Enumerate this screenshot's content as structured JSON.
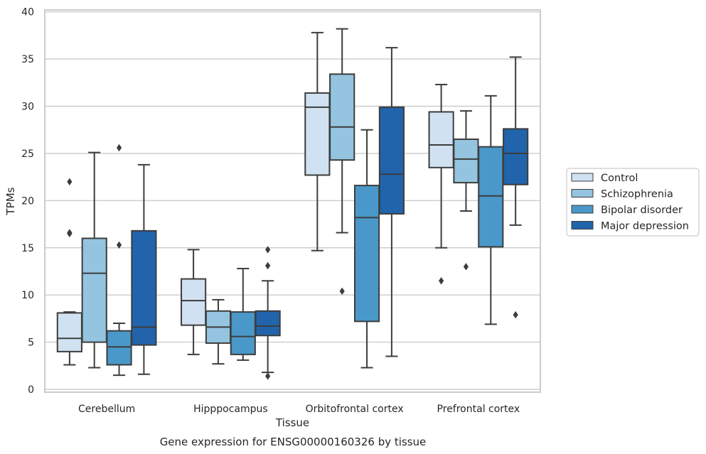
{
  "chart_data": {
    "type": "boxplot",
    "title": "",
    "xlabel": "Tissue",
    "ylabel": "TPMs",
    "caption": "Gene expression for ENSG00000160326 by tissue",
    "ylim": [
      -0.3,
      40.2
    ],
    "yticks": [
      0,
      5,
      10,
      15,
      20,
      25,
      30,
      35,
      40
    ],
    "grid": "horizontal",
    "legend_position": "right",
    "categories": [
      "Cerebellum",
      "Hipppocampus",
      "Orbitofrontal cortex",
      "Prefrontal cortex"
    ],
    "series": [
      {
        "name": "Control",
        "color": "#d0e1f2",
        "boxes": [
          {
            "whislo": 2.6,
            "q1": 4.0,
            "med": 5.4,
            "q3": 8.1,
            "whishi": 8.2,
            "fliers": [
              16.5,
              16.6,
              22.0
            ]
          },
          {
            "whislo": 3.7,
            "q1": 6.8,
            "med": 9.4,
            "q3": 11.7,
            "whishi": 14.8,
            "fliers": []
          },
          {
            "whislo": 14.7,
            "q1": 22.7,
            "med": 29.9,
            "q3": 31.4,
            "whishi": 37.8,
            "fliers": []
          },
          {
            "whislo": 15.0,
            "q1": 23.5,
            "med": 25.9,
            "q3": 29.4,
            "whishi": 32.3,
            "fliers": [
              11.5
            ]
          }
        ]
      },
      {
        "name": "Schizophrenia",
        "color": "#94c4df",
        "boxes": [
          {
            "whislo": 2.3,
            "q1": 5.0,
            "med": 12.3,
            "q3": 16.0,
            "whishi": 25.1,
            "fliers": []
          },
          {
            "whislo": 2.7,
            "q1": 4.9,
            "med": 6.6,
            "q3": 8.3,
            "whishi": 9.5,
            "fliers": []
          },
          {
            "whislo": 16.6,
            "q1": 24.3,
            "med": 27.8,
            "q3": 33.4,
            "whishi": 38.2,
            "fliers": [
              10.4
            ]
          },
          {
            "whislo": 18.9,
            "q1": 21.9,
            "med": 24.4,
            "q3": 26.5,
            "whishi": 29.5,
            "fliers": [
              13.0
            ]
          }
        ]
      },
      {
        "name": "Bipolar disorder",
        "color": "#4a98c9",
        "boxes": [
          {
            "whislo": 1.5,
            "q1": 2.6,
            "med": 4.5,
            "q3": 6.2,
            "whishi": 7.0,
            "fliers": [
              15.3,
              25.6
            ]
          },
          {
            "whislo": 3.1,
            "q1": 3.7,
            "med": 5.6,
            "q3": 8.2,
            "whishi": 12.8,
            "fliers": []
          },
          {
            "whislo": 2.3,
            "q1": 7.2,
            "med": 18.2,
            "q3": 21.6,
            "whishi": 27.5,
            "fliers": []
          },
          {
            "whislo": 6.9,
            "q1": 15.1,
            "med": 20.5,
            "q3": 25.7,
            "whishi": 31.1,
            "fliers": []
          }
        ]
      },
      {
        "name": "Major depression",
        "color": "#2164ab",
        "boxes": [
          {
            "whislo": 1.6,
            "q1": 4.7,
            "med": 6.6,
            "q3": 16.8,
            "whishi": 23.8,
            "fliers": []
          },
          {
            "whislo": 1.8,
            "q1": 5.7,
            "med": 6.7,
            "q3": 8.3,
            "whishi": 11.5,
            "fliers": [
              1.4,
              13.1,
              14.8
            ]
          },
          {
            "whislo": 3.5,
            "q1": 18.6,
            "med": 22.8,
            "q3": 29.9,
            "whishi": 36.2,
            "fliers": []
          },
          {
            "whislo": 17.4,
            "q1": 21.7,
            "med": 25.0,
            "q3": 27.6,
            "whishi": 35.2,
            "fliers": [
              7.9
            ]
          }
        ]
      }
    ]
  }
}
